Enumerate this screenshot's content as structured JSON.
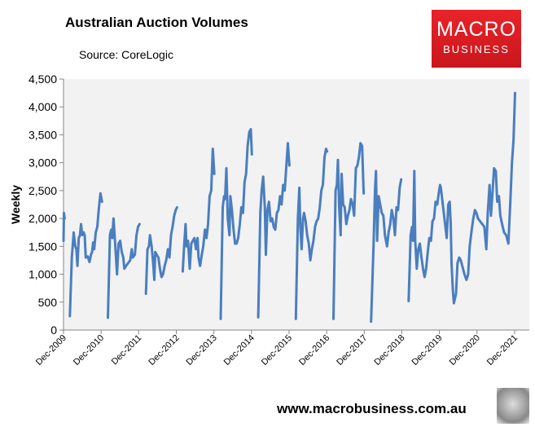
{
  "chart_data": {
    "type": "line",
    "title": "Australian Auction Volumes",
    "subtitle": "Source: CoreLogic",
    "xlabel": "",
    "ylabel": "Weekly",
    "ylim": [
      0,
      4500
    ],
    "yticks": [
      0,
      500,
      1000,
      1500,
      2000,
      2500,
      3000,
      3500,
      4000,
      4500
    ],
    "ytick_labels": [
      "0",
      "500",
      "1,000",
      "1,500",
      "2,000",
      "2,500",
      "3,000",
      "3,500",
      "4,000",
      "4,500"
    ],
    "xlim": [
      "2009-12-01",
      "2021-12-01"
    ],
    "xticks": [
      "2009-12-01",
      "2010-12-01",
      "2011-12-01",
      "2012-12-01",
      "2013-12-01",
      "2014-12-01",
      "2015-12-01",
      "2016-12-01",
      "2017-12-01",
      "2018-12-01",
      "2019-12-01",
      "2020-12-01",
      "2021-12-01"
    ],
    "xtick_labels": [
      "Dec-2009",
      "Dec-2010",
      "Dec-2011",
      "Dec-2012",
      "Dec-2013",
      "Dec-2014",
      "Dec-2015",
      "Dec-2016",
      "Dec-2017",
      "Dec-2018",
      "Dec-2019",
      "Dec-2020",
      "Dec-2021"
    ],
    "grid": false,
    "line_color": "#4a7ebf",
    "plot_background": "#f2f2f2",
    "series": [
      {
        "values": [
          [
            "2009-12-01",
            1600
          ],
          [
            "2009-12-05",
            2100
          ],
          [
            "2009-12-12",
            2000
          ],
          [
            "2009-12-20",
            null
          ],
          [
            "2010-02-01",
            250
          ],
          [
            "2010-02-20",
            1300
          ],
          [
            "2010-03-10",
            1750
          ],
          [
            "2010-03-25",
            1500
          ],
          [
            "2010-04-05",
            1450
          ],
          [
            "2010-04-15",
            1150
          ],
          [
            "2010-04-28",
            1650
          ],
          [
            "2010-05-10",
            1700
          ],
          [
            "2010-05-20",
            1900
          ],
          [
            "2010-06-01",
            1700
          ],
          [
            "2010-06-15",
            1750
          ],
          [
            "2010-06-25",
            1700
          ],
          [
            "2010-07-05",
            1300
          ],
          [
            "2010-07-25",
            1320
          ],
          [
            "2010-08-10",
            1220
          ],
          [
            "2010-08-25",
            1350
          ],
          [
            "2010-09-05",
            1400
          ],
          [
            "2010-09-15",
            1570
          ],
          [
            "2010-09-25",
            1450
          ],
          [
            "2010-10-10",
            1750
          ],
          [
            "2010-10-25",
            1850
          ],
          [
            "2010-11-10",
            2200
          ],
          [
            "2010-11-25",
            2450
          ],
          [
            "2010-12-10",
            2300
          ],
          [
            "2010-12-20",
            null
          ],
          [
            "2011-02-05",
            220
          ],
          [
            "2011-02-25",
            1700
          ],
          [
            "2011-03-10",
            1800
          ],
          [
            "2011-03-20",
            1650
          ],
          [
            "2011-04-01",
            2000
          ],
          [
            "2011-04-15",
            1600
          ],
          [
            "2011-05-05",
            1000
          ],
          [
            "2011-05-20",
            1550
          ],
          [
            "2011-06-05",
            1600
          ],
          [
            "2011-06-20",
            1400
          ],
          [
            "2011-07-05",
            1300
          ],
          [
            "2011-07-15",
            1100
          ],
          [
            "2011-08-01",
            1150
          ],
          [
            "2011-08-20",
            1200
          ],
          [
            "2011-09-10",
            1250
          ],
          [
            "2011-09-25",
            1450
          ],
          [
            "2011-10-05",
            1300
          ],
          [
            "2011-10-25",
            1350
          ],
          [
            "2011-11-10",
            1700
          ],
          [
            "2011-11-25",
            1850
          ],
          [
            "2011-12-10",
            1900
          ],
          [
            "2011-12-20",
            null
          ],
          [
            "2012-02-10",
            650
          ],
          [
            "2012-02-25",
            1450
          ],
          [
            "2012-03-10",
            1500
          ],
          [
            "2012-03-20",
            1700
          ],
          [
            "2012-04-05",
            1500
          ],
          [
            "2012-04-20",
            1200
          ],
          [
            "2012-05-01",
            900
          ],
          [
            "2012-05-10",
            1400
          ],
          [
            "2012-05-25",
            1350
          ],
          [
            "2012-06-10",
            1300
          ],
          [
            "2012-06-25",
            1100
          ],
          [
            "2012-07-10",
            950
          ],
          [
            "2012-07-25",
            1000
          ],
          [
            "2012-08-10",
            1150
          ],
          [
            "2012-08-25",
            1250
          ],
          [
            "2012-09-10",
            1450
          ],
          [
            "2012-09-25",
            1300
          ],
          [
            "2012-10-10",
            1700
          ],
          [
            "2012-10-25",
            1850
          ],
          [
            "2012-11-10",
            2050
          ],
          [
            "2012-11-25",
            2150
          ],
          [
            "2012-12-08",
            2200
          ],
          [
            "2012-12-20",
            null
          ],
          [
            "2013-02-01",
            1050
          ],
          [
            "2013-02-15",
            1500
          ],
          [
            "2013-03-01",
            1900
          ],
          [
            "2013-03-10",
            1500
          ],
          [
            "2013-03-25",
            1600
          ],
          [
            "2013-04-10",
            1100
          ],
          [
            "2013-04-25",
            1550
          ],
          [
            "2013-05-10",
            1600
          ],
          [
            "2013-05-25",
            1650
          ],
          [
            "2013-06-10",
            1450
          ],
          [
            "2013-06-25",
            1650
          ],
          [
            "2013-07-05",
            1300
          ],
          [
            "2013-07-20",
            1150
          ],
          [
            "2013-08-05",
            1350
          ],
          [
            "2013-08-20",
            1500
          ],
          [
            "2013-09-05",
            1800
          ],
          [
            "2013-09-20",
            1650
          ],
          [
            "2013-10-05",
            1900
          ],
          [
            "2013-10-20",
            2400
          ],
          [
            "2013-11-05",
            2500
          ],
          [
            "2013-11-20",
            3250
          ],
          [
            "2013-12-05",
            2800
          ],
          [
            "2013-12-20",
            null
          ],
          [
            "2014-02-05",
            200
          ],
          [
            "2014-02-25",
            2200
          ],
          [
            "2014-03-10",
            2400
          ],
          [
            "2014-03-20",
            2350
          ],
          [
            "2014-04-01",
            2900
          ],
          [
            "2014-04-15",
            2000
          ],
          [
            "2014-05-01",
            1700
          ],
          [
            "2014-05-10",
            2400
          ],
          [
            "2014-05-25",
            2150
          ],
          [
            "2014-06-10",
            1800
          ],
          [
            "2014-06-25",
            1550
          ],
          [
            "2014-07-10",
            1550
          ],
          [
            "2014-07-25",
            1650
          ],
          [
            "2014-08-10",
            1900
          ],
          [
            "2014-08-25",
            2200
          ],
          [
            "2014-09-10",
            2100
          ],
          [
            "2014-09-25",
            2650
          ],
          [
            "2014-10-10",
            2800
          ],
          [
            "2014-10-25",
            3300
          ],
          [
            "2014-11-10",
            3550
          ],
          [
            "2014-11-25",
            3600
          ],
          [
            "2014-12-05",
            3150
          ],
          [
            "2014-12-20",
            null
          ],
          [
            "2015-02-05",
            230
          ],
          [
            "2015-02-25",
            2100
          ],
          [
            "2015-03-10",
            2500
          ],
          [
            "2015-03-25",
            2750
          ],
          [
            "2015-04-10",
            2200
          ],
          [
            "2015-04-20",
            1350
          ],
          [
            "2015-05-05",
            2150
          ],
          [
            "2015-05-20",
            2300
          ],
          [
            "2015-06-05",
            1950
          ],
          [
            "2015-06-20",
            2000
          ],
          [
            "2015-07-05",
            1850
          ],
          [
            "2015-07-20",
            1800
          ],
          [
            "2015-08-05",
            2100
          ],
          [
            "2015-08-20",
            2150
          ],
          [
            "2015-09-05",
            2400
          ],
          [
            "2015-09-20",
            2250
          ],
          [
            "2015-10-05",
            2600
          ],
          [
            "2015-10-20",
            2500
          ],
          [
            "2015-11-05",
            2950
          ],
          [
            "2015-11-20",
            3350
          ],
          [
            "2015-12-05",
            2950
          ],
          [
            "2015-12-20",
            null
          ],
          [
            "2016-02-05",
            200
          ],
          [
            "2016-02-25",
            2000
          ],
          [
            "2016-03-10",
            2550
          ],
          [
            "2016-03-20",
            1850
          ],
          [
            "2016-04-01",
            1450
          ],
          [
            "2016-04-15",
            2000
          ],
          [
            "2016-04-25",
            2100
          ],
          [
            "2016-05-10",
            1950
          ],
          [
            "2016-05-25",
            1700
          ],
          [
            "2016-06-10",
            1550
          ],
          [
            "2016-06-25",
            1250
          ],
          [
            "2016-07-10",
            1450
          ],
          [
            "2016-07-25",
            1600
          ],
          [
            "2016-08-10",
            1850
          ],
          [
            "2016-08-25",
            1950
          ],
          [
            "2016-09-10",
            2000
          ],
          [
            "2016-09-25",
            2200
          ],
          [
            "2016-10-10",
            2500
          ],
          [
            "2016-10-25",
            2600
          ],
          [
            "2016-11-10",
            3100
          ],
          [
            "2016-11-25",
            3250
          ],
          [
            "2016-12-05",
            3200
          ],
          [
            "2016-12-20",
            null
          ],
          [
            "2017-02-05",
            200
          ],
          [
            "2017-02-25",
            2500
          ],
          [
            "2017-03-10",
            2600
          ],
          [
            "2017-03-20",
            3050
          ],
          [
            "2017-04-01",
            2200
          ],
          [
            "2017-04-15",
            1700
          ],
          [
            "2017-04-25",
            2800
          ],
          [
            "2017-05-10",
            2250
          ],
          [
            "2017-05-25",
            2200
          ],
          [
            "2017-06-10",
            1900
          ],
          [
            "2017-06-25",
            2050
          ],
          [
            "2017-07-10",
            2150
          ],
          [
            "2017-07-25",
            2350
          ],
          [
            "2017-08-10",
            2250
          ],
          [
            "2017-08-25",
            2050
          ],
          [
            "2017-09-10",
            2900
          ],
          [
            "2017-09-25",
            2950
          ],
          [
            "2017-10-10",
            3100
          ],
          [
            "2017-10-25",
            3350
          ],
          [
            "2017-11-10",
            3300
          ],
          [
            "2017-11-25",
            2450
          ],
          [
            "2017-12-20",
            null
          ],
          [
            "2018-02-05",
            150
          ],
          [
            "2018-03-01",
            1500
          ],
          [
            "2018-03-15",
            2500
          ],
          [
            "2018-03-25",
            2850
          ],
          [
            "2018-04-05",
            1600
          ],
          [
            "2018-04-20",
            2400
          ],
          [
            "2018-05-05",
            2250
          ],
          [
            "2018-05-20",
            2100
          ],
          [
            "2018-06-05",
            2050
          ],
          [
            "2018-06-20",
            1700
          ],
          [
            "2018-07-10",
            1500
          ],
          [
            "2018-07-25",
            1750
          ],
          [
            "2018-08-10",
            1900
          ],
          [
            "2018-08-25",
            2150
          ],
          [
            "2018-09-10",
            2000
          ],
          [
            "2018-09-25",
            1700
          ],
          [
            "2018-10-10",
            2200
          ],
          [
            "2018-10-25",
            2150
          ],
          [
            "2018-11-10",
            2550
          ],
          [
            "2018-11-25",
            2700
          ],
          [
            "2018-12-20",
            null
          ],
          [
            "2019-02-05",
            520
          ],
          [
            "2019-02-25",
            1700
          ],
          [
            "2019-03-10",
            1850
          ],
          [
            "2019-03-20",
            1600
          ],
          [
            "2019-04-01",
            2850
          ],
          [
            "2019-04-10",
            1600
          ],
          [
            "2019-04-25",
            1100
          ],
          [
            "2019-05-10",
            1450
          ],
          [
            "2019-05-25",
            1550
          ],
          [
            "2019-06-10",
            1300
          ],
          [
            "2019-06-25",
            1100
          ],
          [
            "2019-07-10",
            950
          ],
          [
            "2019-07-25",
            1100
          ],
          [
            "2019-08-10",
            1400
          ],
          [
            "2019-08-25",
            1650
          ],
          [
            "2019-09-10",
            1600
          ],
          [
            "2019-09-25",
            1950
          ],
          [
            "2019-10-10",
            2000
          ],
          [
            "2019-10-25",
            2300
          ],
          [
            "2019-11-10",
            2250
          ],
          [
            "2019-11-25",
            2450
          ],
          [
            "2019-12-07",
            2600
          ],
          [
            "2019-12-15",
            2550
          ],
          [
            "2020-02-10",
            1650
          ],
          [
            "2020-02-25",
            2250
          ],
          [
            "2020-03-10",
            2300
          ],
          [
            "2020-03-20",
            1900
          ],
          [
            "2020-03-28",
            1200
          ],
          [
            "2020-04-10",
            700
          ],
          [
            "2020-04-20",
            480
          ],
          [
            "2020-05-10",
            650
          ],
          [
            "2020-05-25",
            1200
          ],
          [
            "2020-06-10",
            1300
          ],
          [
            "2020-06-25",
            1250
          ],
          [
            "2020-07-10",
            1150
          ],
          [
            "2020-08-01",
            1000
          ],
          [
            "2020-08-20",
            900
          ],
          [
            "2020-09-05",
            1000
          ],
          [
            "2020-09-20",
            1500
          ],
          [
            "2020-10-10",
            1800
          ],
          [
            "2020-10-25",
            2000
          ],
          [
            "2020-11-10",
            2150
          ],
          [
            "2020-11-25",
            2100
          ],
          [
            "2020-12-10",
            2000
          ],
          [
            "2021-01-20",
            1900
          ],
          [
            "2021-02-10",
            1850
          ],
          [
            "2021-03-01",
            1450
          ],
          [
            "2021-03-15",
            2100
          ],
          [
            "2021-04-01",
            2600
          ],
          [
            "2021-04-15",
            2050
          ],
          [
            "2021-05-01",
            2500
          ],
          [
            "2021-05-15",
            2900
          ],
          [
            "2021-06-01",
            2850
          ],
          [
            "2021-06-15",
            2300
          ],
          [
            "2021-07-01",
            2400
          ],
          [
            "2021-07-15",
            2050
          ],
          [
            "2021-08-01",
            1900
          ],
          [
            "2021-08-20",
            1750
          ],
          [
            "2021-09-10",
            1700
          ],
          [
            "2021-10-01",
            1550
          ],
          [
            "2021-10-20",
            2300
          ],
          [
            "2021-11-05",
            3000
          ],
          [
            "2021-11-20",
            3400
          ],
          [
            "2021-12-05",
            4250
          ]
        ]
      }
    ]
  },
  "logo": {
    "line1": "MACRO",
    "line2": "BUSINESS",
    "color": "#e8242a"
  },
  "footer": {
    "url": "www.macrobusiness.com.au"
  }
}
